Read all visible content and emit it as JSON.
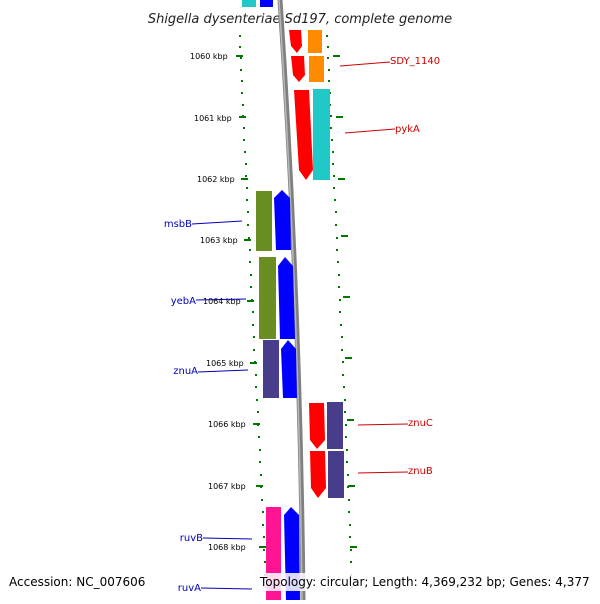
{
  "title": "Shigella dysenteriae Sd197, complete genome",
  "footer": {
    "accession": "Accession: NC_007606",
    "topology": "Topology: circular; Length: 4,369,232 bp; Genes: 4,377"
  },
  "coordinate_labels": [
    "1060 kbp",
    "1061 kbp",
    "1062 kbp",
    "1063 kbp",
    "1064 kbp",
    "1065 kbp",
    "1066 kbp",
    "1067 kbp",
    "1068 kbp"
  ],
  "genes_right": [
    {
      "label": "SDY_1140",
      "color": "#cc0000"
    },
    {
      "label": "pykA",
      "color": "#cc0000"
    },
    {
      "label": "znuC",
      "color": "#cc0000"
    },
    {
      "label": "znuB",
      "color": "#cc0000"
    }
  ],
  "genes_left": [
    {
      "label": "msbB",
      "color": "#0000bb"
    },
    {
      "label": "yebA",
      "color": "#0000bb"
    },
    {
      "label": "znuA",
      "color": "#0000bb"
    },
    {
      "label": "ruvB",
      "color": "#0000bb"
    },
    {
      "label": "ruvA",
      "color": "#0000bb"
    }
  ],
  "colors": {
    "forward_strand": "#ff0000",
    "reverse_strand": "#0000ff",
    "cog_orange": "#ff8c00",
    "cog_cyan": "#20c8c8",
    "cog_olive": "#6b8e23",
    "cog_slate": "#483d8b",
    "cog_pink": "#ff1493",
    "backbone": "#808080",
    "tick": "#007700"
  }
}
